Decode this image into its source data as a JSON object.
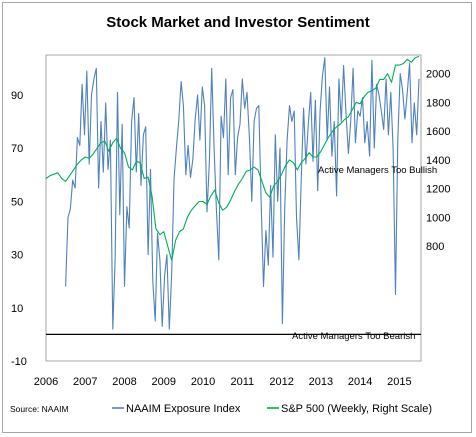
{
  "chart_data": {
    "type": "line",
    "title": "Stock Market and Investor Sentiment",
    "source": "Source: NAAIM",
    "x_ticks": [
      "2006",
      "2007",
      "2008",
      "2009",
      "2010",
      "2011",
      "2012",
      "2013",
      "2014",
      "2015"
    ],
    "xlim": [
      2006.0,
      2015.55
    ],
    "left_axis": {
      "ticks": [
        "-10",
        "10",
        "30",
        "50",
        "70",
        "90"
      ],
      "ylim": [
        -10,
        105
      ]
    },
    "right_axis": {
      "ticks": [
        "800",
        "1000",
        "1200",
        "1400",
        "1600",
        "1800",
        "2000"
      ],
      "ylim": [
        0,
        2130
      ]
    },
    "annotations": {
      "bullish": "Active Managers  Too Bullish",
      "bearish": "Active Managers  Too Bearish"
    },
    "series": [
      {
        "name": "NAAIM Exposure Index",
        "color": "#4f81bd",
        "axis": "left",
        "x": [
          2006.5,
          2006.56,
          2006.62,
          2006.68,
          2006.74,
          2006.8,
          2006.86,
          2006.92,
          2006.98,
          2007.04,
          2007.1,
          2007.16,
          2007.22,
          2007.28,
          2007.34,
          2007.4,
          2007.46,
          2007.52,
          2007.58,
          2007.64,
          2007.7,
          2007.76,
          2007.82,
          2007.88,
          2007.94,
          2008.0,
          2008.06,
          2008.12,
          2008.18,
          2008.24,
          2008.3,
          2008.36,
          2008.42,
          2008.48,
          2008.54,
          2008.6,
          2008.66,
          2008.72,
          2008.78,
          2008.84,
          2008.9,
          2008.96,
          2009.02,
          2009.08,
          2009.14,
          2009.2,
          2009.26,
          2009.32,
          2009.38,
          2009.44,
          2009.5,
          2009.56,
          2009.62,
          2009.68,
          2009.74,
          2009.8,
          2009.86,
          2009.92,
          2009.98,
          2010.04,
          2010.1,
          2010.16,
          2010.22,
          2010.28,
          2010.34,
          2010.4,
          2010.46,
          2010.52,
          2010.58,
          2010.64,
          2010.7,
          2010.76,
          2010.82,
          2010.88,
          2010.94,
          2011.0,
          2011.06,
          2011.12,
          2011.18,
          2011.24,
          2011.3,
          2011.36,
          2011.42,
          2011.48,
          2011.54,
          2011.6,
          2011.66,
          2011.72,
          2011.78,
          2011.84,
          2011.9,
          2011.96,
          2012.02,
          2012.08,
          2012.14,
          2012.2,
          2012.26,
          2012.32,
          2012.38,
          2012.44,
          2012.5,
          2012.56,
          2012.62,
          2012.68,
          2012.74,
          2012.8,
          2012.86,
          2012.92,
          2012.98,
          2013.04,
          2013.1,
          2013.16,
          2013.22,
          2013.28,
          2013.34,
          2013.4,
          2013.46,
          2013.52,
          2013.58,
          2013.64,
          2013.7,
          2013.76,
          2013.82,
          2013.88,
          2013.94,
          2014.0,
          2014.06,
          2014.12,
          2014.18,
          2014.24,
          2014.3,
          2014.36,
          2014.42,
          2014.48,
          2014.54,
          2014.6,
          2014.66,
          2014.72,
          2014.78,
          2014.84,
          2014.9,
          2014.96,
          2015.02,
          2015.08,
          2015.14,
          2015.2,
          2015.26,
          2015.32,
          2015.38,
          2015.44,
          2015.5
        ],
        "values": [
          18,
          44,
          47,
          58,
          55,
          74,
          71,
          94,
          75,
          99,
          64,
          90,
          96,
          100,
          55,
          80,
          61,
          87,
          62,
          73,
          2,
          28,
          91,
          45,
          79,
          18,
          48,
          40,
          80,
          89,
          61,
          83,
          56,
          75,
          78,
          30,
          62,
          20,
          5,
          38,
          28,
          3,
          22,
          30,
          2,
          23,
          58,
          70,
          80,
          95,
          86,
          60,
          71,
          59,
          66,
          81,
          90,
          73,
          93,
          86,
          46,
          65,
          100,
          70,
          47,
          28,
          82,
          74,
          96,
          60,
          89,
          92,
          60,
          74,
          79,
          96,
          85,
          91,
          74,
          50,
          80,
          85,
          86,
          49,
          18,
          39,
          26,
          56,
          29,
          75,
          50,
          70,
          4,
          47,
          73,
          86,
          80,
          84,
          44,
          28,
          58,
          85,
          64,
          79,
          91,
          65,
          88,
          54,
          84,
          97,
          104,
          73,
          93,
          67,
          80,
          52,
          96,
          80,
          101,
          83,
          68,
          80,
          100,
          72,
          84,
          82,
          89,
          72,
          80,
          67,
          103,
          70,
          94,
          90,
          84,
          77,
          96,
          75,
          91,
          70,
          15,
          73,
          98,
          92,
          81,
          91,
          102,
          72,
          87,
          75,
          96
        ]
      },
      {
        "name": "S&P 500 (Weekly, Right Scale)",
        "color": "#00b050",
        "axis": "right",
        "x": [
          2006.0,
          2006.1,
          2006.2,
          2006.3,
          2006.4,
          2006.5,
          2006.6,
          2006.7,
          2006.8,
          2006.9,
          2007.0,
          2007.1,
          2007.2,
          2007.3,
          2007.4,
          2007.5,
          2007.6,
          2007.7,
          2007.8,
          2007.9,
          2008.0,
          2008.1,
          2008.2,
          2008.3,
          2008.4,
          2008.5,
          2008.6,
          2008.7,
          2008.8,
          2008.9,
          2009.0,
          2009.1,
          2009.2,
          2009.3,
          2009.4,
          2009.5,
          2009.6,
          2009.7,
          2009.8,
          2009.9,
          2010.0,
          2010.1,
          2010.2,
          2010.3,
          2010.4,
          2010.5,
          2010.6,
          2010.7,
          2010.8,
          2010.9,
          2011.0,
          2011.1,
          2011.2,
          2011.3,
          2011.4,
          2011.5,
          2011.6,
          2011.7,
          2011.8,
          2011.9,
          2012.0,
          2012.1,
          2012.2,
          2012.3,
          2012.4,
          2012.5,
          2012.6,
          2012.7,
          2012.8,
          2012.9,
          2013.0,
          2013.1,
          2013.2,
          2013.3,
          2013.4,
          2013.5,
          2013.6,
          2013.7,
          2013.8,
          2013.9,
          2014.0,
          2014.1,
          2014.2,
          2014.3,
          2014.4,
          2014.5,
          2014.6,
          2014.7,
          2014.8,
          2014.9,
          2015.0,
          2015.1,
          2015.2,
          2015.3,
          2015.4,
          2015.5
        ],
        "values": [
          1270,
          1290,
          1300,
          1310,
          1270,
          1250,
          1290,
          1330,
          1370,
          1400,
          1420,
          1410,
          1440,
          1480,
          1520,
          1530,
          1460,
          1520,
          1550,
          1480,
          1450,
          1350,
          1330,
          1390,
          1380,
          1270,
          1280,
          1150,
          920,
          880,
          900,
          800,
          700,
          840,
          900,
          920,
          1000,
          1050,
          1080,
          1110,
          1110,
          1090,
          1150,
          1190,
          1100,
          1050,
          1070,
          1120,
          1180,
          1230,
          1270,
          1320,
          1330,
          1350,
          1330,
          1250,
          1170,
          1140,
          1220,
          1250,
          1300,
          1360,
          1400,
          1380,
          1330,
          1380,
          1410,
          1450,
          1420,
          1420,
          1460,
          1510,
          1560,
          1600,
          1630,
          1650,
          1680,
          1700,
          1750,
          1800,
          1790,
          1840,
          1870,
          1880,
          1900,
          1960,
          1960,
          2000,
          1940,
          2060,
          2060,
          2070,
          2100,
          2080,
          2110,
          2120
        ]
      }
    ]
  }
}
